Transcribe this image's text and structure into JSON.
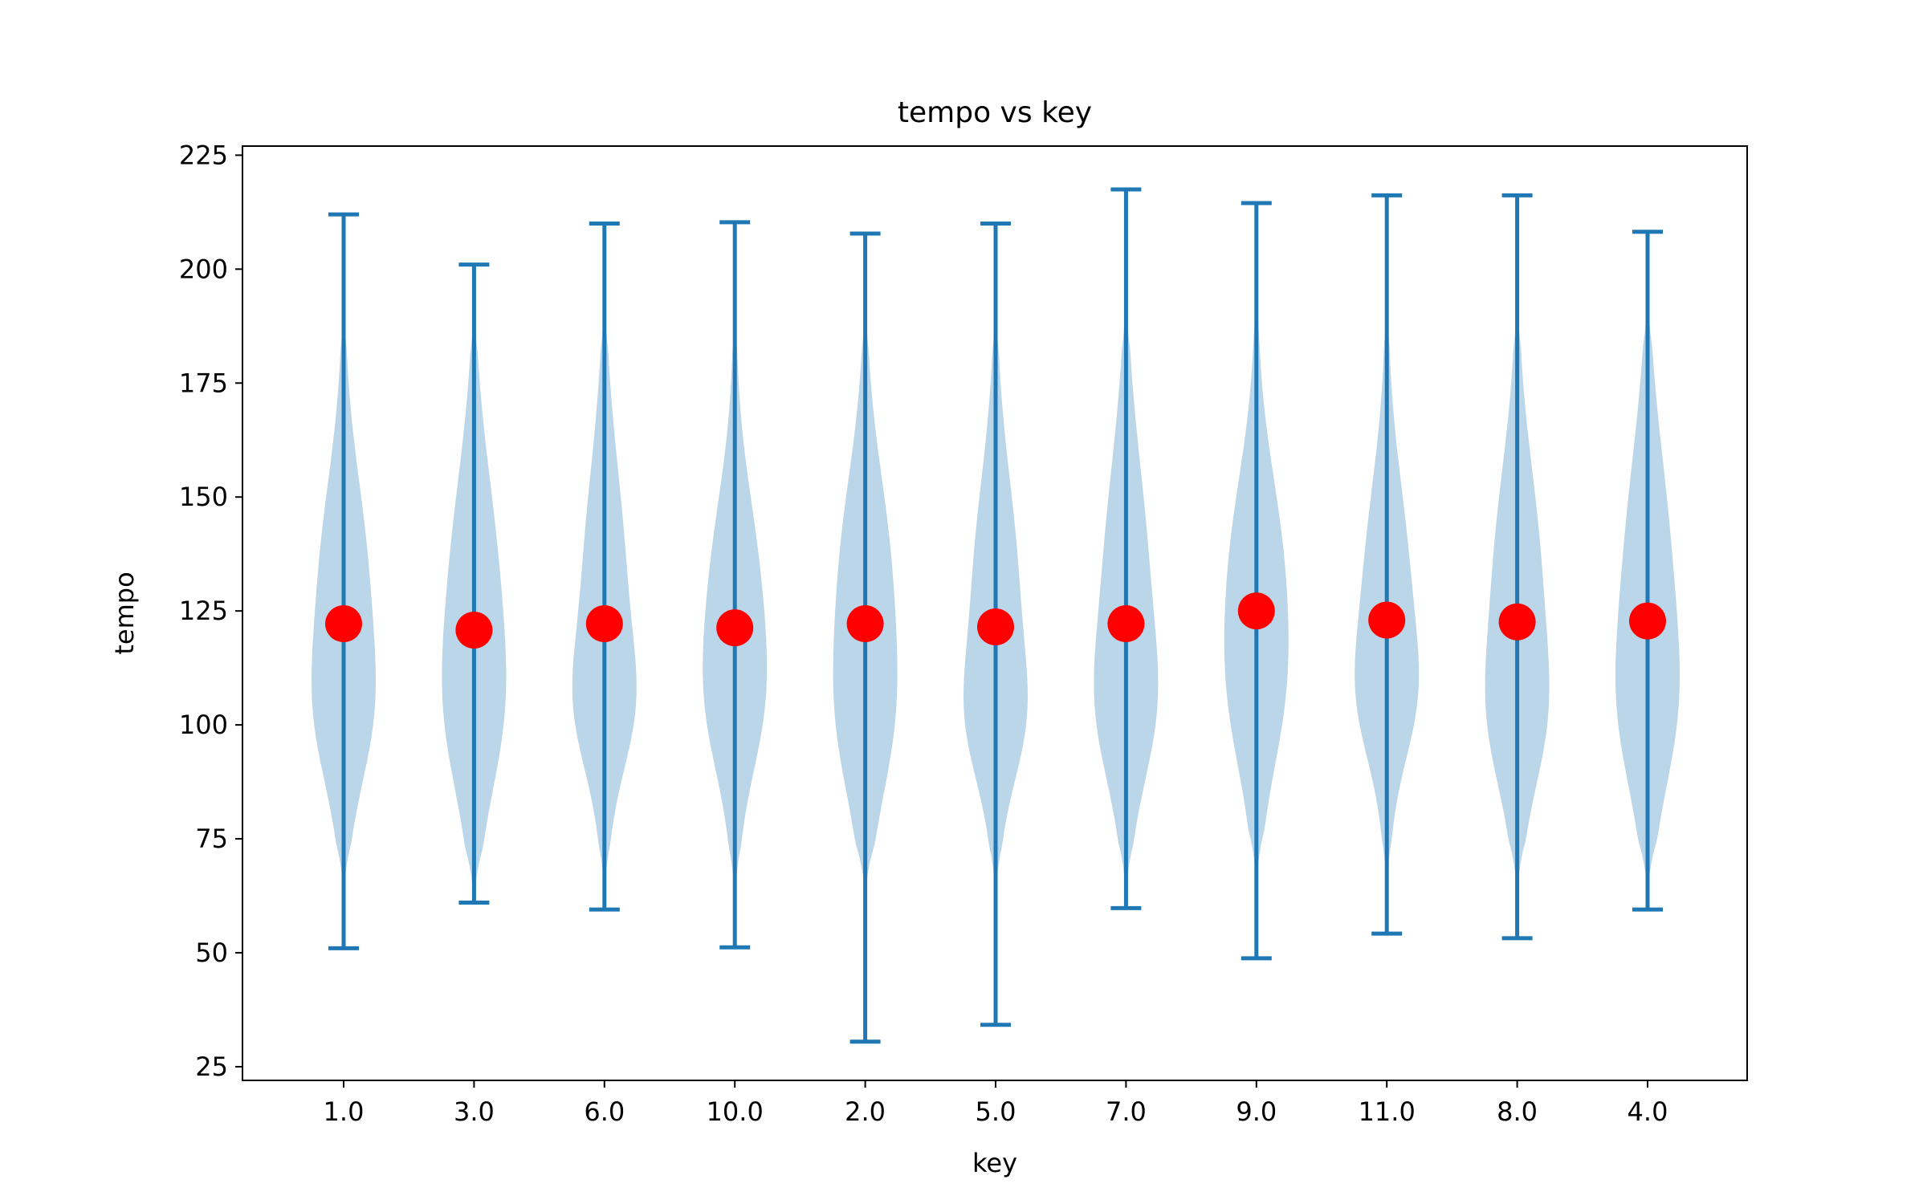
{
  "chart_data": {
    "type": "violin",
    "title": "tempo vs key",
    "xlabel": "key",
    "ylabel": "tempo",
    "categories": [
      "1.0",
      "3.0",
      "6.0",
      "10.0",
      "2.0",
      "5.0",
      "7.0",
      "9.0",
      "11.0",
      "8.0",
      "4.0"
    ],
    "ylim": [
      22,
      227
    ],
    "yticks": [
      25,
      50,
      75,
      100,
      125,
      150,
      175,
      200,
      225
    ],
    "mins": [
      51,
      61,
      59.5,
      51.2,
      30.5,
      34.2,
      59.8,
      48.8,
      54.2,
      53.2,
      59.5
    ],
    "maxs": [
      212,
      201,
      210,
      210.3,
      207.8,
      210,
      217.5,
      214.5,
      216.2,
      216.2,
      208.2
    ],
    "means": [
      122.2,
      120.8,
      122.2,
      121.3,
      122.2,
      121.5,
      122.2,
      125,
      123,
      122.6,
      122.8
    ],
    "grid": false,
    "colors": {
      "violin_fill": "#1f77b4",
      "violin_opacity": 0.3,
      "lines": "#1f77b4",
      "mean_marker": "#ff0000",
      "axes": "#000000"
    }
  }
}
